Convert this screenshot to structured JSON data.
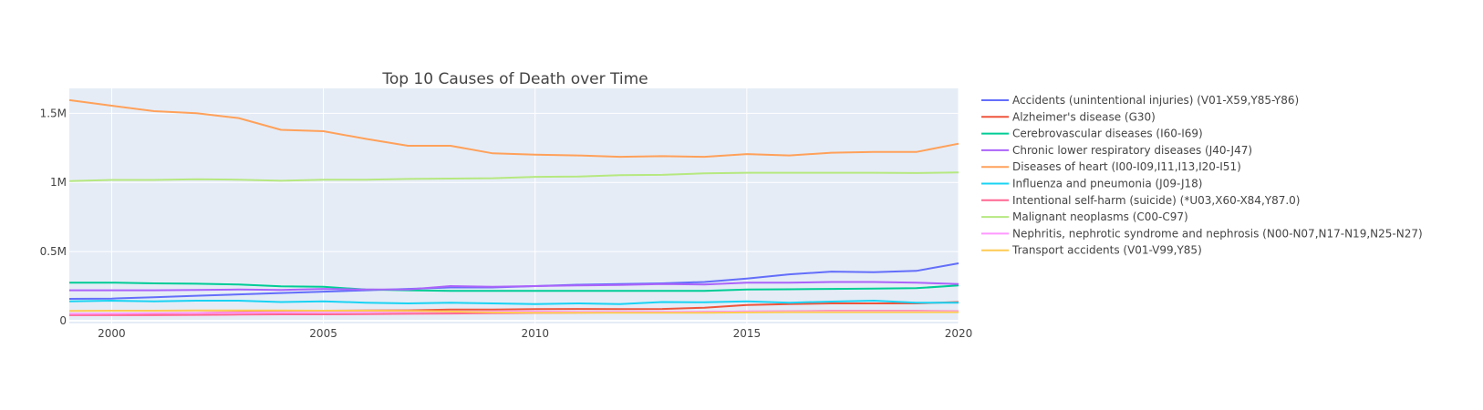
{
  "chart_data": {
    "type": "line",
    "title": "Top 10 Causes of Death over Time",
    "xlabel": "",
    "ylabel": "",
    "xlim": [
      1999,
      2020
    ],
    "ylim": [
      -20000,
      1680000
    ],
    "x_ticks": [
      2000,
      2005,
      2010,
      2015,
      2020
    ],
    "x_tick_labels": [
      "2000",
      "2005",
      "2010",
      "2015",
      "2020"
    ],
    "y_ticks": [
      0,
      500000,
      1000000,
      1500000
    ],
    "y_tick_labels": [
      "0",
      "0.5M",
      "1M",
      "1.5M"
    ],
    "grid": true,
    "legend_position": "right",
    "x": [
      1999,
      2000,
      2001,
      2002,
      2003,
      2004,
      2005,
      2006,
      2007,
      2008,
      2009,
      2010,
      2011,
      2012,
      2013,
      2014,
      2015,
      2016,
      2017,
      2018,
      2019,
      2020
    ],
    "series": [
      {
        "name": "Accidents (unintentional injuries) (V01-X59,Y85-Y86)",
        "color": "#636efa",
        "values": [
          158000,
          160000,
          170000,
          180000,
          190000,
          200000,
          210000,
          220000,
          230000,
          240000,
          240000,
          250000,
          260000,
          265000,
          270000,
          280000,
          305000,
          335000,
          355000,
          350000,
          360000,
          415000
        ]
      },
      {
        "name": "Alzheimer's disease (G30)",
        "color": "#ef553b",
        "values": [
          45000,
          48000,
          52000,
          56000,
          62000,
          66000,
          72000,
          74000,
          75000,
          80000,
          80000,
          84000,
          85000,
          84000,
          85000,
          94000,
          113000,
          120000,
          125000,
          125000,
          125000,
          135000
        ]
      },
      {
        "name": "Cerebrovascular diseases (I60-I69)",
        "color": "#00cc96",
        "values": [
          275000,
          275000,
          270000,
          267000,
          262000,
          248000,
          245000,
          225000,
          220000,
          215000,
          215000,
          215000,
          215000,
          215000,
          215000,
          215000,
          225000,
          227000,
          230000,
          232000,
          235000,
          255000
        ]
      },
      {
        "name": "Chronic lower respiratory diseases (J40-J47)",
        "color": "#ab63fa",
        "values": [
          220000,
          220000,
          220000,
          222000,
          225000,
          222000,
          230000,
          225000,
          225000,
          250000,
          245000,
          250000,
          255000,
          258000,
          265000,
          262000,
          275000,
          275000,
          280000,
          280000,
          275000,
          265000
        ]
      },
      {
        "name": "Diseases of heart (I00-I09,I11,I13,I20-I51)",
        "color": "#ffa15a",
        "values": [
          1595000,
          1555000,
          1515000,
          1500000,
          1465000,
          1380000,
          1370000,
          1315000,
          1265000,
          1265000,
          1210000,
          1200000,
          1195000,
          1185000,
          1190000,
          1185000,
          1205000,
          1195000,
          1215000,
          1220000,
          1220000,
          1280000
        ]
      },
      {
        "name": "Influenza and pneumonia (J09-J18)",
        "color": "#19d3f3",
        "values": [
          140000,
          145000,
          140000,
          145000,
          145000,
          135000,
          140000,
          130000,
          125000,
          130000,
          125000,
          120000,
          125000,
          120000,
          135000,
          133000,
          140000,
          130000,
          138000,
          145000,
          130000,
          130000
        ]
      },
      {
        "name": "Intentional self-harm (suicide) (*U03,X60-X84,Y87.0)",
        "color": "#ff6692",
        "values": [
          40000,
          40000,
          40000,
          42000,
          44000,
          46000,
          46000,
          48000,
          50000,
          52000,
          54000,
          56000,
          58000,
          60000,
          62000,
          64000,
          66000,
          68000,
          70000,
          70000,
          70000,
          68000
        ]
      },
      {
        "name": "Malignant neoplasms (C00-C97)",
        "color": "#b6e880",
        "values": [
          1010000,
          1018000,
          1018000,
          1023000,
          1020000,
          1012000,
          1020000,
          1020000,
          1025000,
          1028000,
          1030000,
          1040000,
          1042000,
          1052000,
          1055000,
          1065000,
          1070000,
          1070000,
          1070000,
          1070000,
          1068000,
          1072000
        ]
      },
      {
        "name": "Nephritis, nephrotic syndrome and nephrosis (N00-N07,N17-N19,N25-N27)",
        "color": "#ff97ff",
        "values": [
          50000,
          52000,
          54000,
          56000,
          58000,
          60000,
          62000,
          64000,
          64000,
          66000,
          66000,
          66000,
          64000,
          64000,
          64000,
          64000,
          66000,
          66000,
          66000,
          66000,
          66000,
          66000
        ]
      },
      {
        "name": "Transport accidents (V01-V99,Y85)",
        "color": "#fecb52",
        "values": [
          70000,
          72000,
          72000,
          74000,
          74000,
          74000,
          72000,
          72000,
          70000,
          66000,
          60000,
          58000,
          58000,
          58000,
          58000,
          58000,
          60000,
          62000,
          62000,
          62000,
          62000,
          62000
        ]
      }
    ]
  }
}
